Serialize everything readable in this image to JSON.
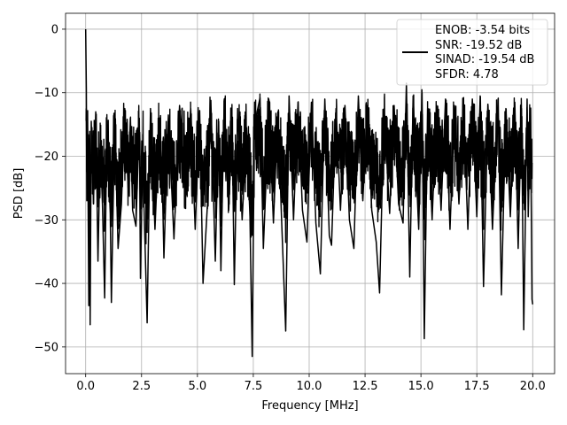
{
  "chart_data": {
    "type": "line",
    "title": "",
    "xlabel": "Frequency [MHz]",
    "ylabel": "PSD [dB]",
    "xlim": [
      -0.9,
      20.98
    ],
    "ylim": [
      -54.2,
      2.5
    ],
    "xticks": [
      0.0,
      2.5,
      5.0,
      7.5,
      10.0,
      12.5,
      15.0,
      17.5,
      20.0
    ],
    "xtick_labels": [
      "0.0",
      "2.5",
      "5.0",
      "7.5",
      "10.0",
      "12.5",
      "15.0",
      "17.5",
      "20.0"
    ],
    "yticks": [
      0,
      -10,
      -20,
      -30,
      -40,
      -50
    ],
    "ytick_labels": [
      "0",
      "−10",
      "−20",
      "−30",
      "−40",
      "−50"
    ],
    "grid": true,
    "legend_position": "upper-right",
    "line_color": "#000000",
    "legend_entries": [
      "ENOB: -3.54 bits",
      "SNR: -19.52 dB",
      "SINAD: -19.54 dB",
      "SFDR: 4.78"
    ],
    "series": [
      {
        "points": [
          [
            0.0,
            0.0
          ],
          [
            0.03,
            -9.5
          ],
          [
            0.05,
            -27.0
          ],
          [
            0.08,
            -14.0
          ],
          [
            0.1,
            -22.0
          ],
          [
            0.14,
            -43.5
          ],
          [
            0.18,
            -17.0
          ],
          [
            0.2,
            -46.5
          ],
          [
            0.25,
            -14.5
          ],
          [
            0.35,
            -27.5
          ],
          [
            0.45,
            -13.0
          ],
          [
            0.55,
            -36.5
          ],
          [
            0.65,
            -18.0
          ],
          [
            0.75,
            -27.5
          ],
          [
            0.85,
            -42.3
          ],
          [
            0.95,
            -15.0
          ],
          [
            1.1,
            -29.0
          ],
          [
            1.15,
            -43.0
          ],
          [
            1.3,
            -14.0
          ],
          [
            1.45,
            -34.5
          ],
          [
            1.6,
            -27.5
          ],
          [
            1.75,
            -12.5
          ],
          [
            1.9,
            -25.0
          ],
          [
            2.0,
            -14.0
          ],
          [
            2.1,
            -28.5
          ],
          [
            2.25,
            -31.0
          ],
          [
            2.4,
            -14.0
          ],
          [
            2.45,
            -39.2
          ],
          [
            2.55,
            -20.0
          ],
          [
            2.75,
            -46.2
          ],
          [
            2.9,
            -12.5
          ],
          [
            3.1,
            -31.5
          ],
          [
            3.3,
            -14.5
          ],
          [
            3.45,
            -27.5
          ],
          [
            3.5,
            -36.0
          ],
          [
            3.7,
            -13.5
          ],
          [
            3.95,
            -33.0
          ],
          [
            4.2,
            -12.0
          ],
          [
            4.45,
            -25.5
          ],
          [
            4.7,
            -12.5
          ],
          [
            4.9,
            -31.5
          ],
          [
            5.1,
            -12.8
          ],
          [
            5.25,
            -40.0
          ],
          [
            5.45,
            -27.5
          ],
          [
            5.6,
            -11.2
          ],
          [
            5.8,
            -36.5
          ],
          [
            5.95,
            -14.5
          ],
          [
            6.05,
            -38.0
          ],
          [
            6.2,
            -11.0
          ],
          [
            6.4,
            -28.5
          ],
          [
            6.55,
            -15.0
          ],
          [
            6.65,
            -40.2
          ],
          [
            6.8,
            -12.5
          ],
          [
            7.0,
            -30.0
          ],
          [
            7.2,
            -15.5
          ],
          [
            7.35,
            -29.5
          ],
          [
            7.45,
            -51.5
          ],
          [
            7.55,
            -15.0
          ],
          [
            7.8,
            -10.8
          ],
          [
            7.95,
            -34.5
          ],
          [
            8.2,
            -12.5
          ],
          [
            8.4,
            -30.5
          ],
          [
            8.6,
            -13.0
          ],
          [
            8.75,
            -28.5
          ],
          [
            8.95,
            -47.5
          ],
          [
            9.1,
            -10.5
          ],
          [
            9.3,
            -30.0
          ],
          [
            9.5,
            -11.5
          ],
          [
            9.7,
            -28.5
          ],
          [
            9.9,
            -33.5
          ],
          [
            10.1,
            -11.5
          ],
          [
            10.3,
            -30.5
          ],
          [
            10.5,
            -38.5
          ],
          [
            10.7,
            -11.0
          ],
          [
            10.9,
            -32.5
          ],
          [
            11.0,
            -34.0
          ],
          [
            11.2,
            -12.5
          ],
          [
            11.4,
            -28.5
          ],
          [
            11.6,
            -12.0
          ],
          [
            11.8,
            -30.0
          ],
          [
            12.0,
            -34.5
          ],
          [
            12.2,
            -10.5
          ],
          [
            12.4,
            -27.0
          ],
          [
            12.6,
            -12.0
          ],
          [
            12.8,
            -28.5
          ],
          [
            13.0,
            -33.5
          ],
          [
            13.15,
            -41.5
          ],
          [
            13.35,
            -12.5
          ],
          [
            13.6,
            -29.0
          ],
          [
            13.8,
            -12.0
          ],
          [
            14.0,
            -27.5
          ],
          [
            14.2,
            -30.5
          ],
          [
            14.35,
            -8.5
          ],
          [
            14.5,
            -39.0
          ],
          [
            14.65,
            -10.5
          ],
          [
            14.9,
            -31.5
          ],
          [
            15.05,
            -10.0
          ],
          [
            15.15,
            -48.7
          ],
          [
            15.3,
            -12.5
          ],
          [
            15.5,
            -30.0
          ],
          [
            15.7,
            -12.0
          ],
          [
            15.9,
            -28.5
          ],
          [
            16.1,
            -11.0
          ],
          [
            16.3,
            -31.5
          ],
          [
            16.5,
            -12.5
          ],
          [
            16.7,
            -27.5
          ],
          [
            16.9,
            -12.0
          ],
          [
            17.1,
            -31.5
          ],
          [
            17.3,
            -11.0
          ],
          [
            17.5,
            -29.5
          ],
          [
            17.65,
            -10.5
          ],
          [
            17.8,
            -40.5
          ],
          [
            18.0,
            -12.0
          ],
          [
            18.2,
            -31.5
          ],
          [
            18.45,
            -11.0
          ],
          [
            18.6,
            -41.8
          ],
          [
            18.8,
            -12.5
          ],
          [
            19.0,
            -29.5
          ],
          [
            19.2,
            -11.5
          ],
          [
            19.35,
            -34.5
          ],
          [
            19.5,
            -12.5
          ],
          [
            19.6,
            -47.3
          ],
          [
            19.75,
            -11.0
          ],
          [
            19.8,
            -29.5
          ],
          [
            19.9,
            -12.5
          ],
          [
            19.97,
            -42.5
          ],
          [
            20.0,
            -43.3
          ]
        ]
      }
    ]
  }
}
